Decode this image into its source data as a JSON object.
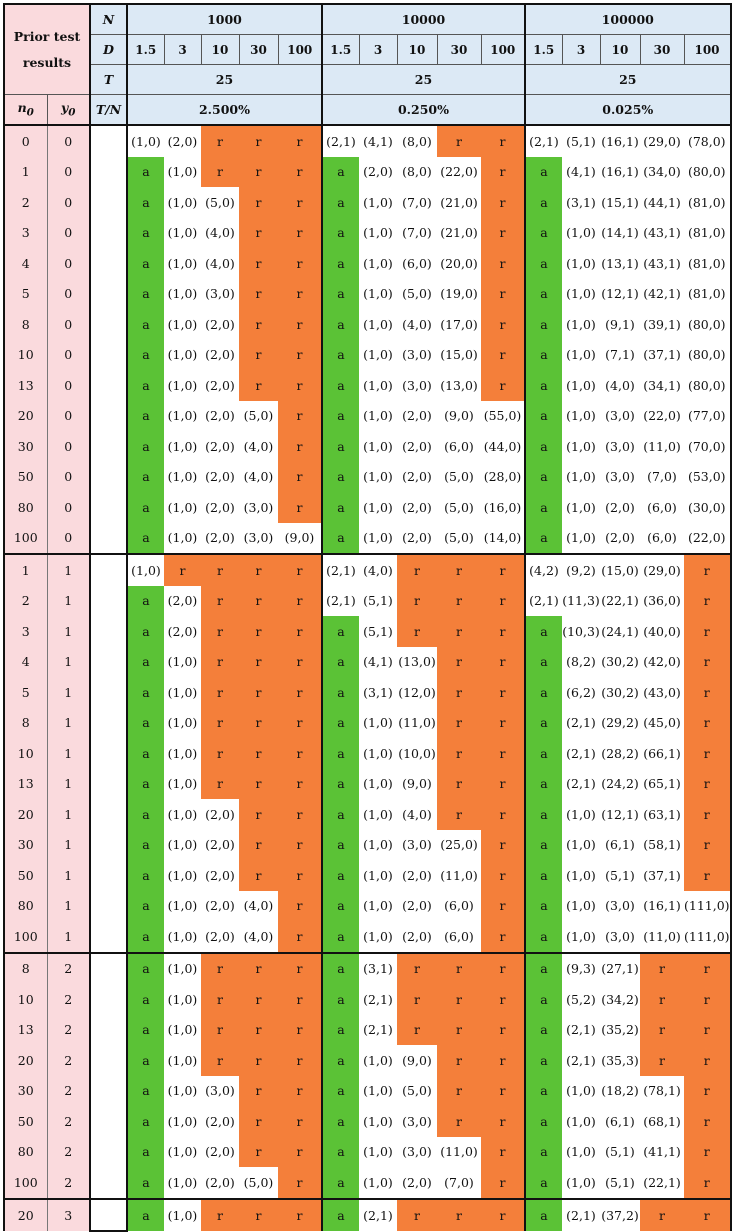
{
  "header": {
    "prior_label_line1": "Prior test",
    "prior_label_line2": "results",
    "N_label": "N",
    "D_label": "D",
    "T_label": "T",
    "TN_label": "T/N",
    "n0_label": "n",
    "n0_sub": "0",
    "y0_label": "y",
    "y0_sub": "0",
    "groups": [
      {
        "N": "1000",
        "T": "25",
        "TN": "2.500%"
      },
      {
        "N": "10000",
        "T": "25",
        "TN": "0.250%"
      },
      {
        "N": "100000",
        "T": "25",
        "TN": "0.025%"
      }
    ],
    "D_values": [
      "1.5",
      "3",
      "10",
      "30",
      "100"
    ]
  },
  "sections": [
    {
      "rows": [
        {
          "n0": "0",
          "y0": "0",
          "cells": [
            "(1,0)",
            "(2,0)",
            "r",
            "r",
            "r",
            "(2,1)",
            "(4,1)",
            "(8,0)",
            "r",
            "r",
            "(2,1)",
            "(5,1)",
            "(16,1)",
            "(29,0)",
            "(78,0)"
          ]
        },
        {
          "n0": "1",
          "y0": "0",
          "cells": [
            "a",
            "(1,0)",
            "r",
            "r",
            "r",
            "a",
            "(2,0)",
            "(8,0)",
            "(22,0)",
            "r",
            "a",
            "(4,1)",
            "(16,1)",
            "(34,0)",
            "(80,0)"
          ]
        },
        {
          "n0": "2",
          "y0": "0",
          "cells": [
            "a",
            "(1,0)",
            "(5,0)",
            "r",
            "r",
            "a",
            "(1,0)",
            "(7,0)",
            "(21,0)",
            "r",
            "a",
            "(3,1)",
            "(15,1)",
            "(44,1)",
            "(81,0)"
          ]
        },
        {
          "n0": "3",
          "y0": "0",
          "cells": [
            "a",
            "(1,0)",
            "(4,0)",
            "r",
            "r",
            "a",
            "(1,0)",
            "(7,0)",
            "(21,0)",
            "r",
            "a",
            "(1,0)",
            "(14,1)",
            "(43,1)",
            "(81,0)"
          ]
        },
        {
          "n0": "4",
          "y0": "0",
          "cells": [
            "a",
            "(1,0)",
            "(4,0)",
            "r",
            "r",
            "a",
            "(1,0)",
            "(6,0)",
            "(20,0)",
            "r",
            "a",
            "(1,0)",
            "(13,1)",
            "(43,1)",
            "(81,0)"
          ]
        },
        {
          "n0": "5",
          "y0": "0",
          "cells": [
            "a",
            "(1,0)",
            "(3,0)",
            "r",
            "r",
            "a",
            "(1,0)",
            "(5,0)",
            "(19,0)",
            "r",
            "a",
            "(1,0)",
            "(12,1)",
            "(42,1)",
            "(81,0)"
          ]
        },
        {
          "n0": "8",
          "y0": "0",
          "cells": [
            "a",
            "(1,0)",
            "(2,0)",
            "r",
            "r",
            "a",
            "(1,0)",
            "(4,0)",
            "(17,0)",
            "r",
            "a",
            "(1,0)",
            "(9,1)",
            "(39,1)",
            "(80,0)"
          ]
        },
        {
          "n0": "10",
          "y0": "0",
          "cells": [
            "a",
            "(1,0)",
            "(2,0)",
            "r",
            "r",
            "a",
            "(1,0)",
            "(3,0)",
            "(15,0)",
            "r",
            "a",
            "(1,0)",
            "(7,1)",
            "(37,1)",
            "(80,0)"
          ]
        },
        {
          "n0": "13",
          "y0": "0",
          "cells": [
            "a",
            "(1,0)",
            "(2,0)",
            "r",
            "r",
            "a",
            "(1,0)",
            "(3,0)",
            "(13,0)",
            "r",
            "a",
            "(1,0)",
            "(4,0)",
            "(34,1)",
            "(80,0)"
          ]
        },
        {
          "n0": "20",
          "y0": "0",
          "cells": [
            "a",
            "(1,0)",
            "(2,0)",
            "(5,0)",
            "r",
            "a",
            "(1,0)",
            "(2,0)",
            "(9,0)",
            "(55,0)",
            "a",
            "(1,0)",
            "(3,0)",
            "(22,0)",
            "(77,0)"
          ]
        },
        {
          "n0": "30",
          "y0": "0",
          "cells": [
            "a",
            "(1,0)",
            "(2,0)",
            "(4,0)",
            "r",
            "a",
            "(1,0)",
            "(2,0)",
            "(6,0)",
            "(44,0)",
            "a",
            "(1,0)",
            "(3,0)",
            "(11,0)",
            "(70,0)"
          ]
        },
        {
          "n0": "50",
          "y0": "0",
          "cells": [
            "a",
            "(1,0)",
            "(2,0)",
            "(4,0)",
            "r",
            "a",
            "(1,0)",
            "(2,0)",
            "(5,0)",
            "(28,0)",
            "a",
            "(1,0)",
            "(3,0)",
            "(7,0)",
            "(53,0)"
          ]
        },
        {
          "n0": "80",
          "y0": "0",
          "cells": [
            "a",
            "(1,0)",
            "(2,0)",
            "(3,0)",
            "r",
            "a",
            "(1,0)",
            "(2,0)",
            "(5,0)",
            "(16,0)",
            "a",
            "(1,0)",
            "(2,0)",
            "(6,0)",
            "(30,0)"
          ]
        },
        {
          "n0": "100",
          "y0": "0",
          "cells": [
            "a",
            "(1,0)",
            "(2,0)",
            "(3,0)",
            "(9,0)",
            "a",
            "(1,0)",
            "(2,0)",
            "(5,0)",
            "(14,0)",
            "a",
            "(1,0)",
            "(2,0)",
            "(6,0)",
            "(22,0)"
          ]
        }
      ]
    },
    {
      "rows": [
        {
          "n0": "1",
          "y0": "1",
          "cells": [
            "(1,0)",
            "r",
            "r",
            "r",
            "r",
            "(2,1)",
            "(4,0)",
            "r",
            "r",
            "r",
            "(4,2)",
            "(9,2)",
            "(15,0)",
            "(29,0)",
            "r"
          ]
        },
        {
          "n0": "2",
          "y0": "1",
          "cells": [
            "a",
            "(2,0)",
            "r",
            "r",
            "r",
            "(2,1)",
            "(5,1)",
            "r",
            "r",
            "r",
            "(2,1)",
            "(11,3)",
            "(22,1)",
            "(36,0)",
            "r"
          ]
        },
        {
          "n0": "3",
          "y0": "1",
          "cells": [
            "a",
            "(2,0)",
            "r",
            "r",
            "r",
            "a",
            "(5,1)",
            "r",
            "r",
            "r",
            "a",
            "(10,3)",
            "(24,1)",
            "(40,0)",
            "r"
          ]
        },
        {
          "n0": "4",
          "y0": "1",
          "cells": [
            "a",
            "(1,0)",
            "r",
            "r",
            "r",
            "a",
            "(4,1)",
            "(13,0)",
            "r",
            "r",
            "a",
            "(8,2)",
            "(30,2)",
            "(42,0)",
            "r"
          ]
        },
        {
          "n0": "5",
          "y0": "1",
          "cells": [
            "a",
            "(1,0)",
            "r",
            "r",
            "r",
            "a",
            "(3,1)",
            "(12,0)",
            "r",
            "r",
            "a",
            "(6,2)",
            "(30,2)",
            "(43,0)",
            "r"
          ]
        },
        {
          "n0": "8",
          "y0": "1",
          "cells": [
            "a",
            "(1,0)",
            "r",
            "r",
            "r",
            "a",
            "(1,0)",
            "(11,0)",
            "r",
            "r",
            "a",
            "(2,1)",
            "(29,2)",
            "(45,0)",
            "r"
          ]
        },
        {
          "n0": "10",
          "y0": "1",
          "cells": [
            "a",
            "(1,0)",
            "r",
            "r",
            "r",
            "a",
            "(1,0)",
            "(10,0)",
            "r",
            "r",
            "a",
            "(2,1)",
            "(28,2)",
            "(66,1)",
            "r"
          ]
        },
        {
          "n0": "13",
          "y0": "1",
          "cells": [
            "a",
            "(1,0)",
            "r",
            "r",
            "r",
            "a",
            "(1,0)",
            "(9,0)",
            "r",
            "r",
            "a",
            "(2,1)",
            "(24,2)",
            "(65,1)",
            "r"
          ]
        },
        {
          "n0": "20",
          "y0": "1",
          "cells": [
            "a",
            "(1,0)",
            "(2,0)",
            "r",
            "r",
            "a",
            "(1,0)",
            "(4,0)",
            "r",
            "r",
            "a",
            "(1,0)",
            "(12,1)",
            "(63,1)",
            "r"
          ]
        },
        {
          "n0": "30",
          "y0": "1",
          "cells": [
            "a",
            "(1,0)",
            "(2,0)",
            "r",
            "r",
            "a",
            "(1,0)",
            "(3,0)",
            "(25,0)",
            "r",
            "a",
            "(1,0)",
            "(6,1)",
            "(58,1)",
            "r"
          ]
        },
        {
          "n0": "50",
          "y0": "1",
          "cells": [
            "a",
            "(1,0)",
            "(2,0)",
            "r",
            "r",
            "a",
            "(1,0)",
            "(2,0)",
            "(11,0)",
            "r",
            "a",
            "(1,0)",
            "(5,1)",
            "(37,1)",
            "r"
          ]
        },
        {
          "n0": "80",
          "y0": "1",
          "cells": [
            "a",
            "(1,0)",
            "(2,0)",
            "(4,0)",
            "r",
            "a",
            "(1,0)",
            "(2,0)",
            "(6,0)",
            "r",
            "a",
            "(1,0)",
            "(3,0)",
            "(16,1)",
            "(111,0)"
          ]
        },
        {
          "n0": "100",
          "y0": "1",
          "cells": [
            "a",
            "(1,0)",
            "(2,0)",
            "(4,0)",
            "r",
            "a",
            "(1,0)",
            "(2,0)",
            "(6,0)",
            "r",
            "a",
            "(1,0)",
            "(3,0)",
            "(11,0)",
            "(111,0)"
          ]
        }
      ]
    },
    {
      "rows": [
        {
          "n0": "8",
          "y0": "2",
          "cells": [
            "a",
            "(1,0)",
            "r",
            "r",
            "r",
            "a",
            "(3,1)",
            "r",
            "r",
            "r",
            "a",
            "(9,3)",
            "(27,1)",
            "r",
            "r"
          ]
        },
        {
          "n0": "10",
          "y0": "2",
          "cells": [
            "a",
            "(1,0)",
            "r",
            "r",
            "r",
            "a",
            "(2,1)",
            "r",
            "r",
            "r",
            "a",
            "(5,2)",
            "(34,2)",
            "r",
            "r"
          ]
        },
        {
          "n0": "13",
          "y0": "2",
          "cells": [
            "a",
            "(1,0)",
            "r",
            "r",
            "r",
            "a",
            "(2,1)",
            "r",
            "r",
            "r",
            "a",
            "(2,1)",
            "(35,2)",
            "r",
            "r"
          ]
        },
        {
          "n0": "20",
          "y0": "2",
          "cells": [
            "a",
            "(1,0)",
            "r",
            "r",
            "r",
            "a",
            "(1,0)",
            "(9,0)",
            "r",
            "r",
            "a",
            "(2,1)",
            "(35,3)",
            "r",
            "r"
          ]
        },
        {
          "n0": "30",
          "y0": "2",
          "cells": [
            "a",
            "(1,0)",
            "(3,0)",
            "r",
            "r",
            "a",
            "(1,0)",
            "(5,0)",
            "r",
            "r",
            "a",
            "(1,0)",
            "(18,2)",
            "(78,1)",
            "r"
          ]
        },
        {
          "n0": "50",
          "y0": "2",
          "cells": [
            "a",
            "(1,0)",
            "(2,0)",
            "r",
            "r",
            "a",
            "(1,0)",
            "(3,0)",
            "r",
            "r",
            "a",
            "(1,0)",
            "(6,1)",
            "(68,1)",
            "r"
          ]
        },
        {
          "n0": "80",
          "y0": "2",
          "cells": [
            "a",
            "(1,0)",
            "(2,0)",
            "r",
            "r",
            "a",
            "(1,0)",
            "(3,0)",
            "(11,0)",
            "r",
            "a",
            "(1,0)",
            "(5,1)",
            "(41,1)",
            "r"
          ]
        },
        {
          "n0": "100",
          "y0": "2",
          "cells": [
            "a",
            "(1,0)",
            "(2,0)",
            "(5,0)",
            "r",
            "a",
            "(1,0)",
            "(2,0)",
            "(7,0)",
            "r",
            "a",
            "(1,0)",
            "(5,1)",
            "(22,1)",
            "r"
          ]
        }
      ]
    },
    {
      "rows": [
        {
          "n0": "20",
          "y0": "3",
          "cells": [
            "a",
            "(1,0)",
            "r",
            "r",
            "r",
            "a",
            "(2,1)",
            "r",
            "r",
            "r",
            "a",
            "(2,1)",
            "(37,2)",
            "r",
            "r"
          ]
        }
      ]
    }
  ],
  "colors": {
    "accept": "#5bc236",
    "reject": "#f47f3a",
    "label_bg": "#fadadd",
    "header_bg": "#dce9f5"
  }
}
